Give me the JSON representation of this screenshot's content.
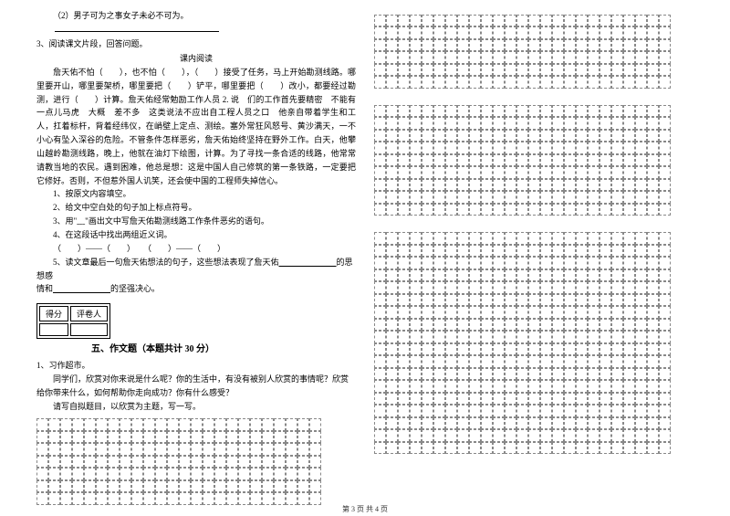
{
  "left": {
    "q2_item": "（2）男子可为之事女子未必不可为。",
    "q3_stem": "3、阅读课文片段，回答问题。",
    "q3_title": "课内阅读",
    "passage": "　　詹天佑不怕（　　），也不怕（　　），（　　）接受了任务，马上开始勘测线路。哪里要开山，哪里要架桥，哪里要把（　　）铲平，哪里要把（　　）改小，都要经过勘测，进行（　　）计算。詹天佑经常勉励工作人员 2.  说　们的工作首先要精密　不能有一点儿马虎　大概　差不多　这类说法不应出自工程人员之口　他亲自带着学生和工人，扛着标杆，背着经纬仪，在峭壁上定点、测绘。塞外常狂风怒号、黄沙满天，一不小心有坠入深谷的危险。不管条件怎样恶劣，詹天佑始终坚持在野外工作。白天，他攀山越岭勘测线路，晚上，他就在油灯下绘图，计算。为了寻找一条合适的线路，他常常请教当地的农民。遇到困难，他总是想：这是中国人自己修筑的第一条铁路，一定要把它修好。否则，不但惹外国人讥笑，还会使中国的工程师失掉信心。",
    "sub1": "1、按原文内容填空。",
    "sub2": "2、给文中空白处的句子加上标点符号。",
    "sub3": "3、用\"﹏\"画出文中写詹天佑勘测线路工作条件恶劣的语句。",
    "sub4": "4、在这段话中找出两组近义词。",
    "sub4_blanks": "（　　）——（　　）　　（　　）——（　　）",
    "sub5_a": "5、读文章最后一句詹天佑想法的句子，这些想法表现了詹天佑",
    "sub5_b": "的思想感",
    "sub5_c": "情和",
    "sub5_d": "的坚强决心。",
    "score_labels": {
      "a": "得分",
      "b": "评卷人"
    },
    "section5_title": "五、作文题（本题共计 30 分）",
    "essay_stem": "1、习作超市。",
    "essay_p1": "　　同学们，欣赏对你来说是什么呢？你的生活中，有没有被别人欣赏的事情呢？欣赏给你带来什么，如何帮助你走向成功？你有什么感受？",
    "essay_p2": "　　请写自拟题目，以欣赏为主题，写一写。"
  },
  "footer": "第 3 页 共 4 页",
  "grids": {
    "left_cols": 24,
    "left_rows": 7,
    "right_block_cols": 25,
    "right_block1_rows": 6,
    "right_block2_rows": 9,
    "right_block3_rows": 18
  },
  "style": {
    "bg": "#ffffff",
    "text": "#000000",
    "grid_border": "#888888",
    "font_base": 9
  }
}
